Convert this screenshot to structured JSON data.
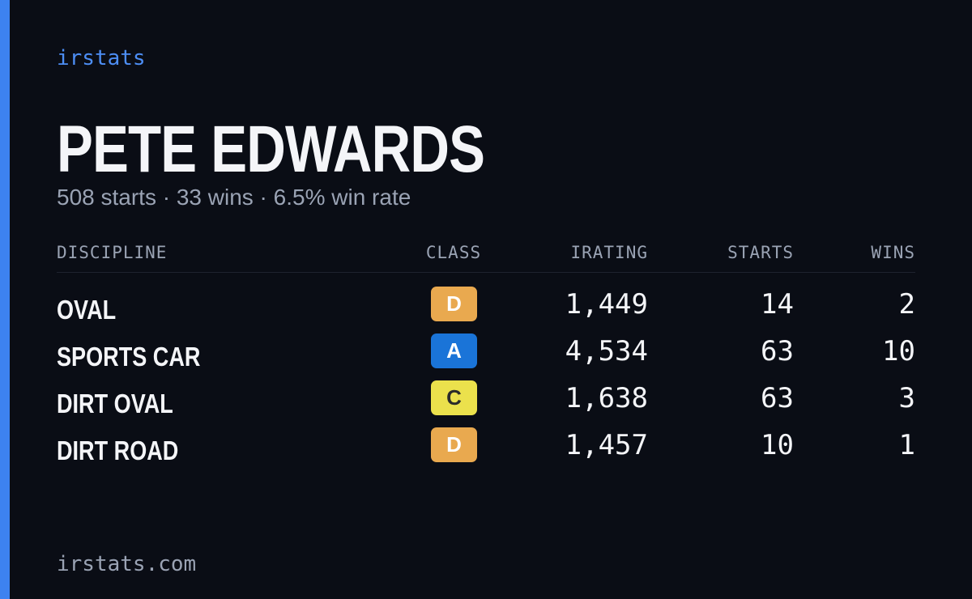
{
  "brand": "irstats",
  "driver": {
    "name": "PETE EDWARDS",
    "summary": "508 starts · 33 wins · 6.5% win rate"
  },
  "table": {
    "headers": [
      "DISCIPLINE",
      "CLASS",
      "IRATING",
      "STARTS",
      "WINS"
    ],
    "rows": [
      {
        "discipline": "OVAL",
        "class": "D",
        "class_color": "#e9a94f",
        "irating": "1,449",
        "starts": "14",
        "wins": "2"
      },
      {
        "discipline": "SPORTS CAR",
        "class": "A",
        "class_color": "#1a74d8",
        "irating": "4,534",
        "starts": "63",
        "wins": "10"
      },
      {
        "discipline": "DIRT OVAL",
        "class": "C",
        "class_color": "#ebe14c",
        "irating": "1,638",
        "starts": "63",
        "wins": "3"
      },
      {
        "discipline": "DIRT ROAD",
        "class": "D",
        "class_color": "#e9a94f",
        "irating": "1,457",
        "starts": "10",
        "wins": "1"
      }
    ]
  },
  "footer": "irstats.com"
}
